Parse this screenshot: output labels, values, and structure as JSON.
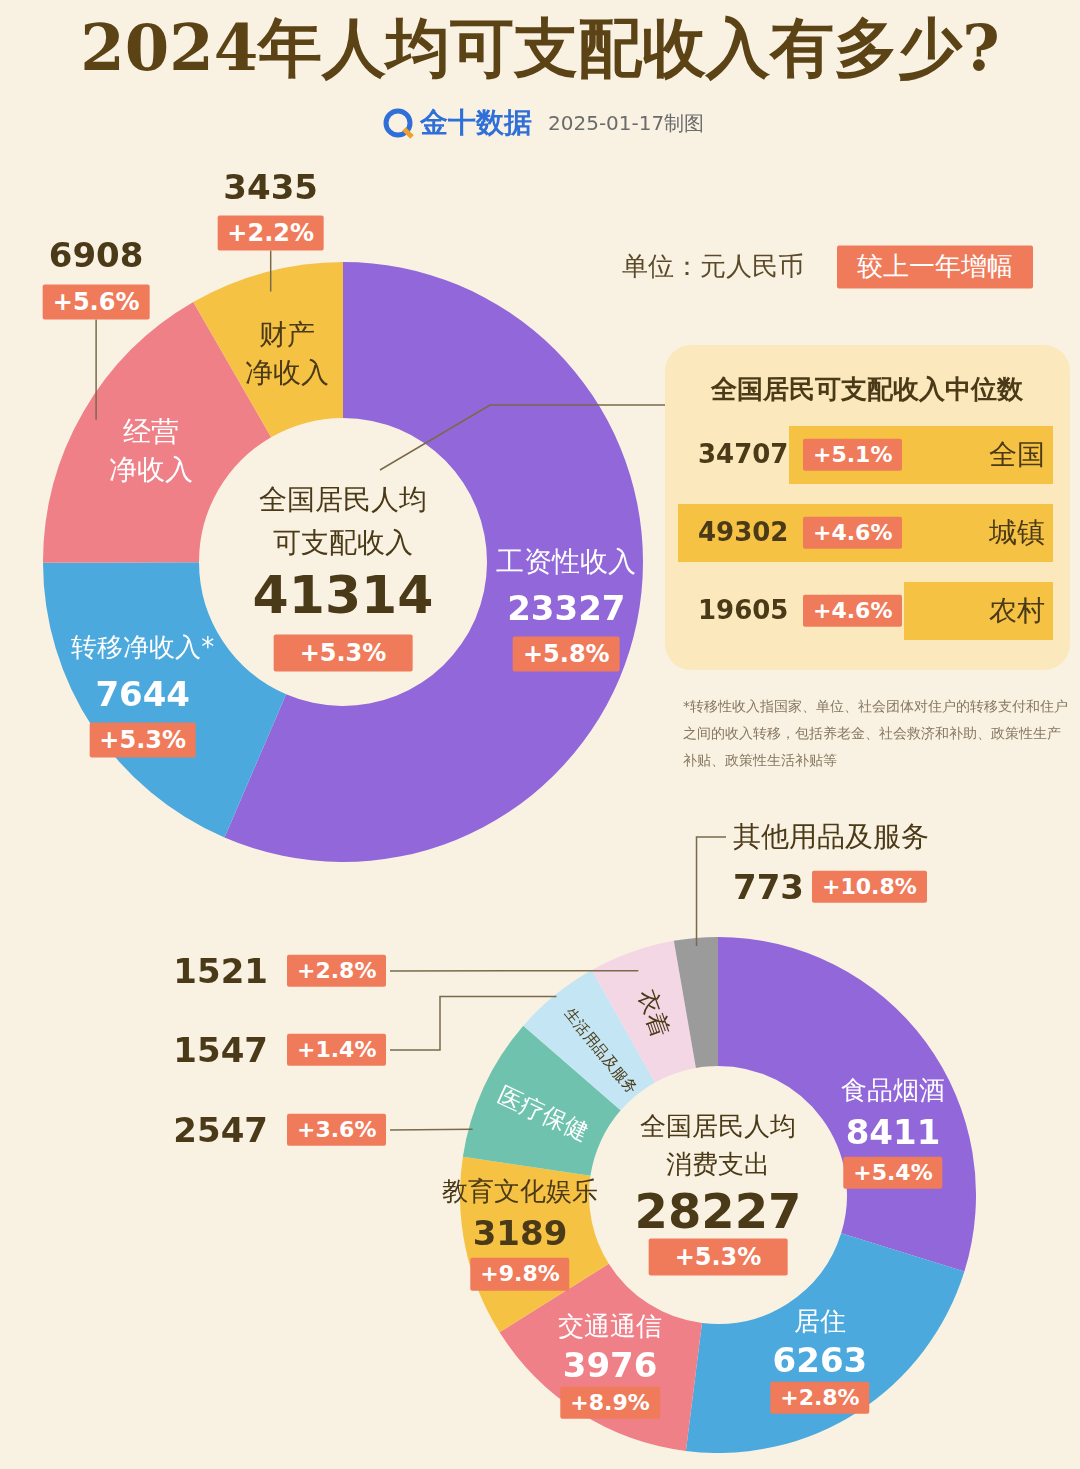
{
  "title": "2024年人均可支配收入有多少?",
  "source": "金十数据",
  "date": "2025-01-17制图",
  "unit": "单位：元人民币",
  "growth_note": "较上一年增幅",
  "chart_data": [
    {
      "type": "doughnut",
      "title": "全国居民人均可支配收入",
      "total": 41314,
      "total_growth": "+5.3%",
      "categories": [
        "工资性收入",
        "转移净收入*",
        "经营净收入",
        "财产净收入"
      ],
      "values": [
        23327,
        7644,
        6908,
        3435
      ],
      "growth": [
        "+5.8%",
        "+5.3%",
        "+5.6%",
        "+2.2%"
      ],
      "colors": [
        "#9167d9",
        "#4ba9dd",
        "#ef8088",
        "#f6c244"
      ],
      "data_labels": true
    },
    {
      "type": "doughnut",
      "title": "全国居民人均消费支出",
      "total": 28227,
      "total_growth": "+5.3%",
      "categories": [
        "食品烟酒",
        "居住",
        "交通通信",
        "教育文化娱乐",
        "医疗保健",
        "生活用品及服务",
        "衣着",
        "其他用品及服务"
      ],
      "values": [
        8411,
        6263,
        3976,
        3189,
        2547,
        1547,
        1521,
        773
      ],
      "growth": [
        "+5.4%",
        "+2.8%",
        "+8.9%",
        "+9.8%",
        "+3.6%",
        "+1.4%",
        "+2.8%",
        "+10.8%"
      ],
      "colors": [
        "#9167d9",
        "#4ba9dd",
        "#ef8088",
        "#f6c244",
        "#6fc3ae",
        "#c4e5f3",
        "#f3d7e5",
        "#9b9b9b"
      ],
      "data_labels": true
    }
  ],
  "median_panel": {
    "title": "全国居民可支配收入中位数",
    "categories": [
      "全国",
      "城镇",
      "农村"
    ],
    "values": [
      34707,
      49302,
      19605
    ],
    "growth": [
      "+5.1%",
      "+4.6%",
      "+4.6%"
    ],
    "color": "#f6c244"
  },
  "footnote": "*转移性收入指国家、单位、社会团体对住户的转移支付和住户之间的收入转移，包括养老金、社会救济和补助、政策性生产补贴、政策性生活补贴等"
}
